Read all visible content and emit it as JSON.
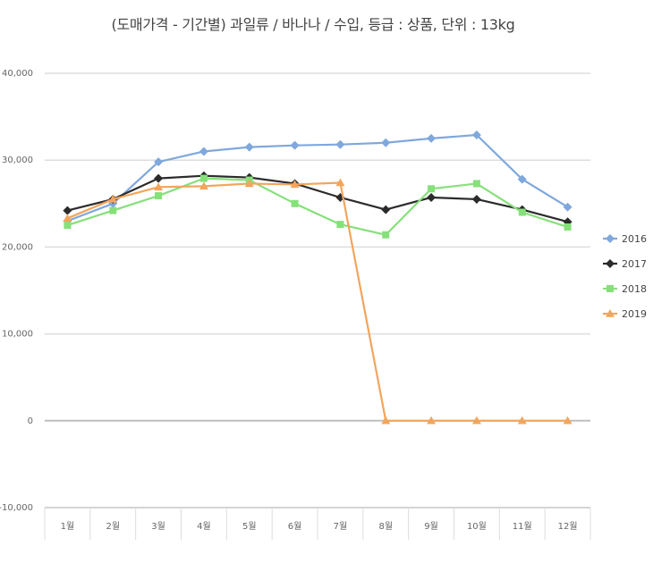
{
  "chart_data": {
    "type": "line",
    "title": "(도매가격 - 기간별) 과일류 / 바나나 / 수입, 등급 : 상품, 단위 : 13kg",
    "categories": [
      "1월",
      "2월",
      "3월",
      "4월",
      "5월",
      "6월",
      "7월",
      "8월",
      "9월",
      "10월",
      "11월",
      "12월"
    ],
    "ylim": [
      -10000,
      40000
    ],
    "yticks": [
      -10000,
      0,
      10000,
      20000,
      30000,
      40000
    ],
    "ytick_labels": [
      "-10,000",
      "0",
      "10,000",
      "20,000",
      "30,000",
      "40,000"
    ],
    "grid": true,
    "legend_position": "right",
    "series": [
      {
        "name": "2016",
        "color": "#7fa8dc",
        "marker": "diamond",
        "values": [
          23000,
          25000,
          29800,
          31000,
          31500,
          31700,
          31800,
          32000,
          32500,
          32900,
          27800,
          24600
        ]
      },
      {
        "name": "2017",
        "color": "#2b2b2b",
        "marker": "diamond",
        "values": [
          24200,
          25500,
          27900,
          28200,
          28000,
          27300,
          25700,
          24300,
          25700,
          25500,
          24300,
          22900
        ]
      },
      {
        "name": "2018",
        "color": "#86e07a",
        "marker": "square",
        "values": [
          22500,
          24200,
          25900,
          27900,
          27700,
          25000,
          22600,
          21400,
          26700,
          27300,
          24000,
          22300
        ]
      },
      {
        "name": "2019",
        "color": "#f2a55c",
        "marker": "triangle",
        "values": [
          23300,
          25500,
          26900,
          27000,
          27300,
          27200,
          27400,
          0,
          0,
          0,
          0,
          0
        ]
      }
    ]
  }
}
